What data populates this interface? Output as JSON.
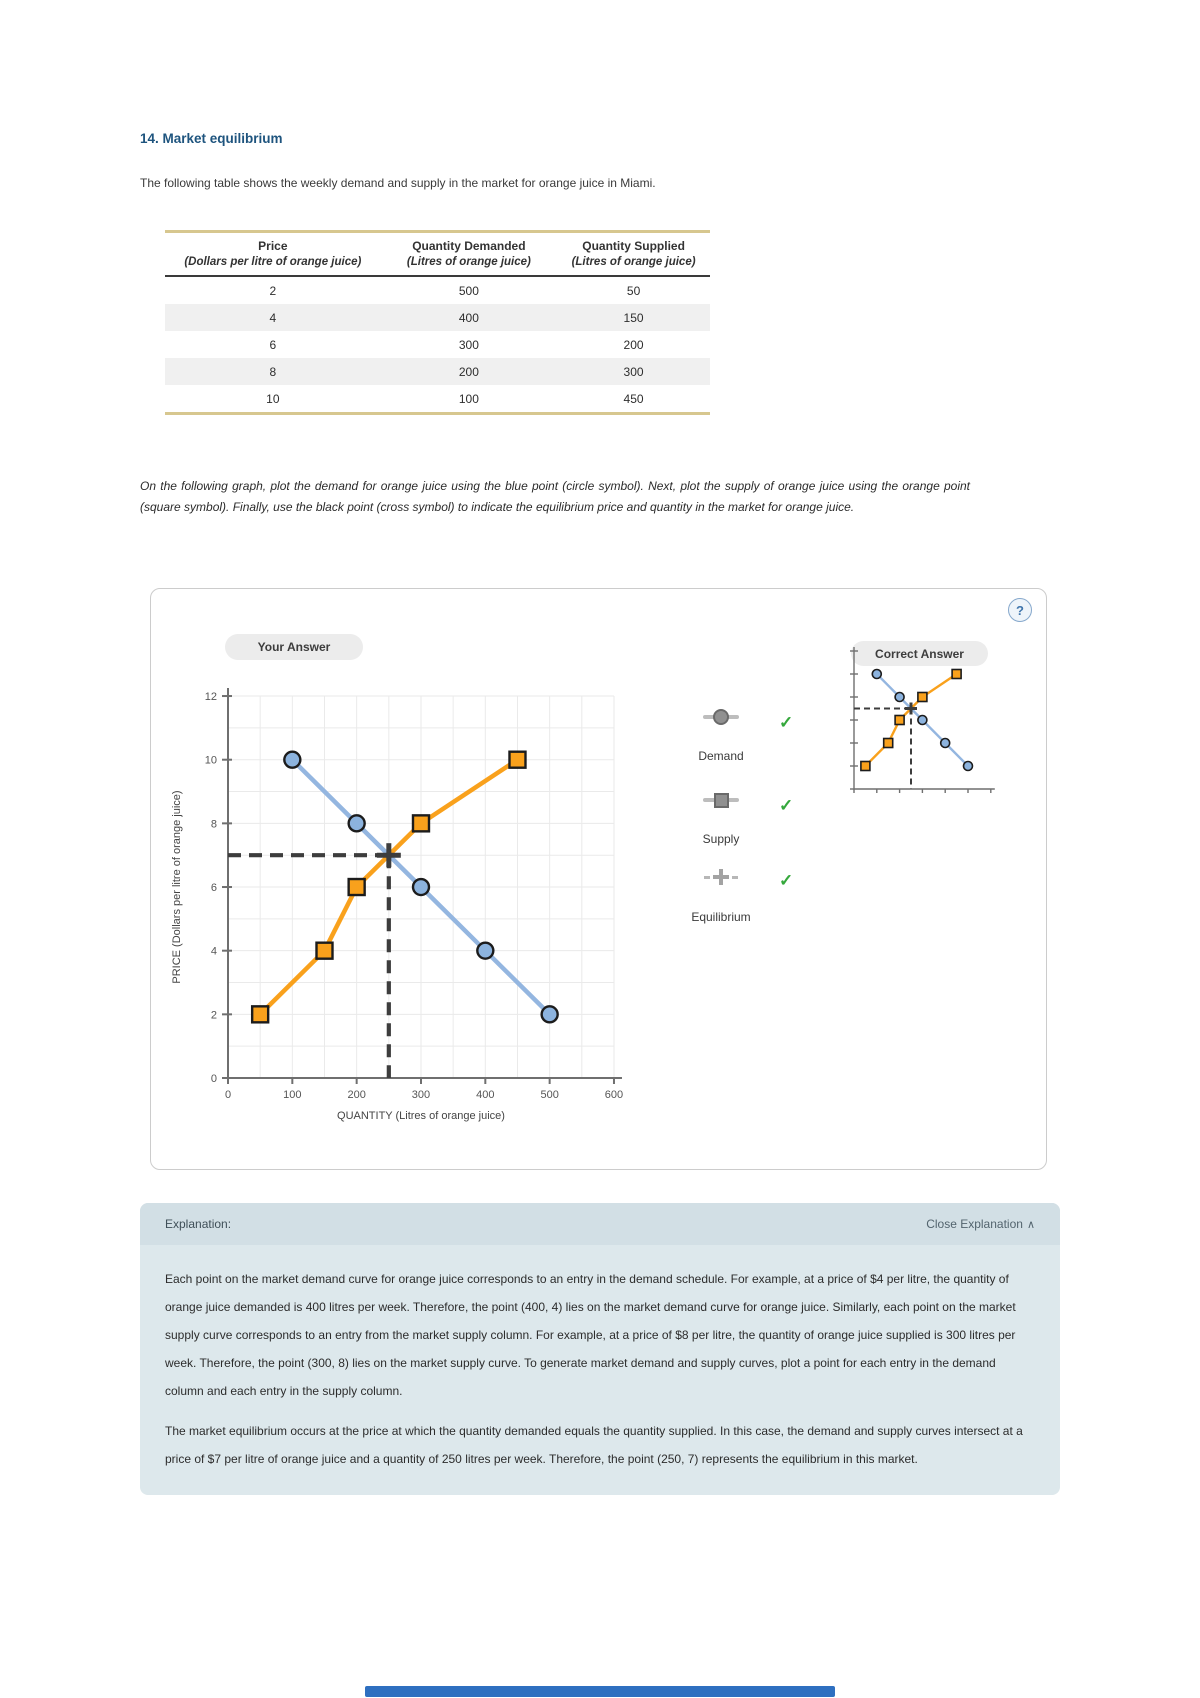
{
  "page": {
    "title": "14. Market equilibrium",
    "intro": "The following table shows the weekly demand and supply in the market for orange juice in Miami.",
    "instructions": "On the following graph, plot the demand for orange juice using the blue point (circle symbol). Next, plot the supply of orange juice using the orange point (square symbol). Finally, use the black point (cross symbol) to indicate the equilibrium price and quantity in the market for orange juice."
  },
  "schedule_table": {
    "col_headers": [
      {
        "title": "Price",
        "subtitle": "(Dollars per litre of orange juice)"
      },
      {
        "title": "Quantity Demanded",
        "subtitle": "(Litres of orange juice)"
      },
      {
        "title": "Quantity Supplied",
        "subtitle": "(Litres of orange juice)"
      }
    ],
    "rows": [
      [
        "2",
        "500",
        "50"
      ],
      [
        "4",
        "400",
        "150"
      ],
      [
        "6",
        "300",
        "200"
      ],
      [
        "8",
        "200",
        "300"
      ],
      [
        "10",
        "100",
        "450"
      ]
    ]
  },
  "graph_panel": {
    "your_answer_label": "Your Answer",
    "correct_answer_label": "Correct Answer",
    "help_icon": "?",
    "check_icon": "✓",
    "check_color": "#35a83c",
    "legend": [
      {
        "label": "Demand",
        "marker": "circle",
        "status": "correct"
      },
      {
        "label": "Supply",
        "marker": "square",
        "status": "correct"
      },
      {
        "label": "Equilibrium",
        "marker": "cross",
        "status": "correct"
      }
    ]
  },
  "chart_data": {
    "type": "line",
    "title": "",
    "xlabel": "QUANTITY (Litres of orange juice)",
    "ylabel": "PRICE (Dollars per litre of orange juice)",
    "xlim": [
      0,
      600
    ],
    "ylim": [
      0,
      12
    ],
    "xticks": [
      0,
      100,
      200,
      300,
      400,
      500,
      600
    ],
    "yticks": [
      0,
      2,
      4,
      6,
      8,
      10,
      12
    ],
    "x_grid_step": 50,
    "y_grid_step": 1,
    "grid": true,
    "legend_position": "right",
    "series": [
      {
        "name": "Demand",
        "marker": "circle",
        "color": "#94b6e0",
        "marker_fill": "#8cb3de",
        "points": [
          [
            100,
            10
          ],
          [
            200,
            8
          ],
          [
            300,
            6
          ],
          [
            400,
            4
          ],
          [
            500,
            2
          ]
        ]
      },
      {
        "name": "Supply",
        "marker": "square",
        "color": "#f9a11c",
        "marker_fill": "#f9a11c",
        "points": [
          [
            50,
            2
          ],
          [
            150,
            4
          ],
          [
            200,
            6
          ],
          [
            300,
            8
          ],
          [
            450,
            10
          ]
        ]
      }
    ],
    "equilibrium": {
      "point": [
        250,
        7
      ],
      "color": "#3d3d3d",
      "marker": "cross"
    }
  },
  "explanation": {
    "header": "Explanation:",
    "close_label": "Close Explanation",
    "close_icon": "∧",
    "paragraphs": [
      "Each point on the market demand curve for orange juice corresponds to an entry in the demand schedule. For example, at a price of $4 per litre, the quantity of orange juice demanded is 400 litres per week. Therefore, the point (400, 4) lies on the market demand curve for orange juice. Similarly, each point on the market supply curve corresponds to an entry from the market supply column. For example, at a price of $8 per litre, the quantity of orange juice supplied is 300 litres per week. Therefore, the point (300, 8) lies on the market supply curve. To generate market demand and supply curves, plot a point for each entry in the demand column and each entry in the supply column.",
      "The market equilibrium occurs at the price at which the quantity demanded equals the quantity supplied. In this case, the demand and supply curves intersect at a price of $7 per litre of orange juice and a quantity of 250 litres per week. Therefore, the point (250, 7) represents the equilibrium in this market."
    ]
  },
  "footer": {
    "bar_color": "#2e6fc0"
  }
}
